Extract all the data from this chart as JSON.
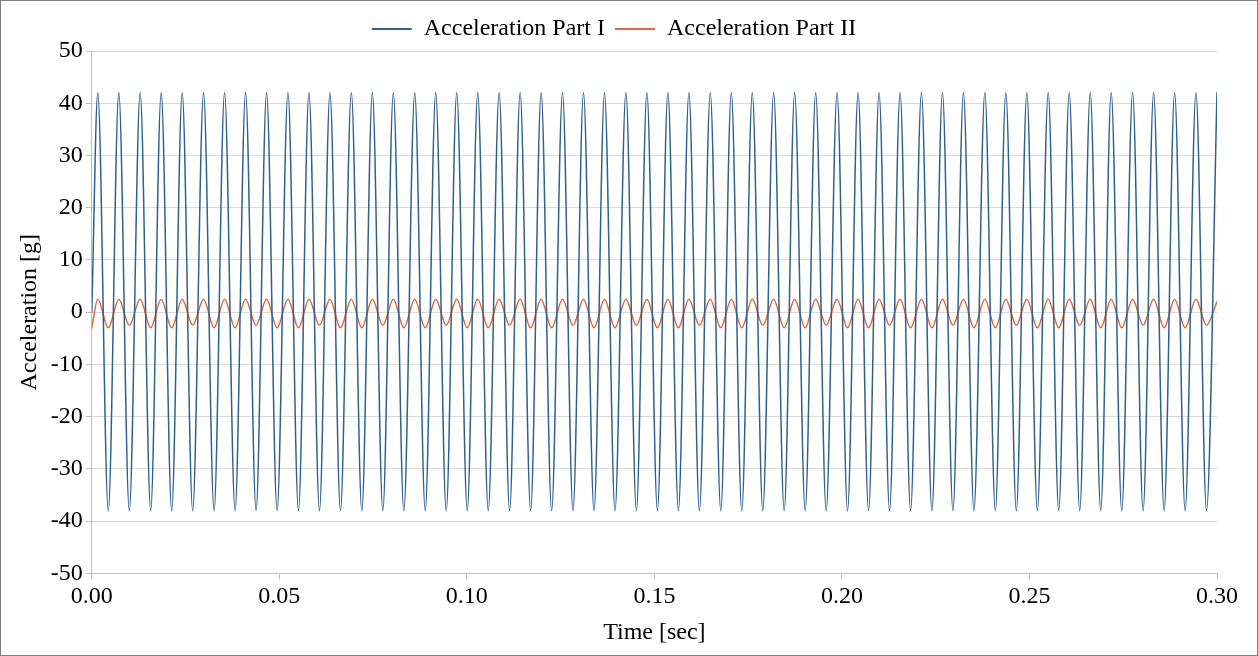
{
  "chart_data": {
    "type": "line",
    "xlabel": "Time [sec]",
    "ylabel": "Acceleration [g]",
    "legend": "top",
    "grid": "y",
    "marker": "none",
    "line_style": "solid",
    "xlim": [
      0,
      0.3
    ],
    "ylim": [
      -50,
      50
    ],
    "xticks": [
      {
        "value": 0,
        "label": "0.00"
      },
      {
        "value": 0.05,
        "label": "0.05"
      },
      {
        "value": 0.1,
        "label": "0.10"
      },
      {
        "value": 0.15,
        "label": "0.15"
      },
      {
        "value": 0.2,
        "label": "0.20"
      },
      {
        "value": 0.25,
        "label": "0.25"
      },
      {
        "value": 0.3,
        "label": "0.30"
      }
    ],
    "yticks": [
      -50,
      -40,
      -30,
      -20,
      -10,
      0,
      10,
      20,
      30,
      40,
      50
    ],
    "x": [
      0,
      0.0016,
      0.0044,
      0.0072,
      0.01,
      0.0129,
      0.0157,
      0.0185,
      0.0213,
      0.0241,
      0.0269,
      0.0298,
      0.0326,
      0.0354,
      0.0382,
      0.041,
      0.0438,
      0.0466,
      0.0494,
      0.0523,
      0.0551,
      0.0579,
      0.0607,
      0.0635,
      0.0663,
      0.0692,
      0.072,
      0.0748,
      0.0776,
      0.0804,
      0.0832,
      0.0861,
      0.0889,
      0.0917,
      0.0945,
      0.0973,
      0.1001,
      0.1029,
      0.1057,
      0.1086,
      0.1114,
      0.1142,
      0.117,
      0.1198,
      0.1226,
      0.1255,
      0.1283,
      0.1311,
      0.1339,
      0.1367,
      0.1395,
      0.1424,
      0.1452,
      0.148,
      0.1508,
      0.1536,
      0.1564,
      0.1592,
      0.162,
      0.1649,
      0.1677,
      0.1705,
      0.1733,
      0.1761,
      0.1789,
      0.1818,
      0.1846,
      0.1874,
      0.1902,
      0.193,
      0.1958,
      0.1987,
      0.2015,
      0.2043,
      0.2071,
      0.2099,
      0.2127,
      0.2155,
      0.2183,
      0.2212,
      0.224,
      0.2268,
      0.2296,
      0.2324,
      0.2352,
      0.2381,
      0.2409,
      0.2437,
      0.2465,
      0.2493,
      0.2521,
      0.255,
      0.2578,
      0.2606,
      0.2634,
      0.2662,
      0.269,
      0.2718,
      0.2746,
      0.2775,
      0.2803,
      0.2831,
      0.2859,
      0.2887,
      0.2915,
      0.2944,
      0.2972,
      0.3
    ],
    "series": [
      {
        "name": "Acceleration Part I",
        "color": "#2e6190",
        "values": [
          0,
          42,
          -38,
          42,
          -38,
          42,
          -38,
          42,
          -38,
          42,
          -38,
          42,
          -38,
          42,
          -38,
          42,
          -38,
          42,
          -38,
          42,
          -38,
          42,
          -38,
          42,
          -38,
          42,
          -38,
          42,
          -38,
          42,
          -38,
          42,
          -38,
          42,
          -38,
          42,
          -38,
          42,
          -38,
          42,
          -38,
          42,
          -38,
          42,
          -38,
          42,
          -38,
          42,
          -38,
          42,
          -38,
          42,
          -38,
          42,
          -38,
          42,
          -38,
          42,
          -38,
          42,
          -38,
          42,
          -38,
          42,
          -38,
          42,
          -38,
          42,
          -38,
          42,
          -38,
          42,
          -38,
          42,
          -38,
          42,
          -38,
          42,
          -38,
          42,
          -38,
          42,
          -38,
          42,
          -38,
          42,
          -38,
          42,
          -38,
          42,
          -38,
          42,
          -38,
          42,
          -38,
          42,
          -38,
          42,
          -38,
          42,
          -38,
          42,
          -38,
          42,
          -38,
          42,
          -38,
          42
        ]
      },
      {
        "name": "Acceleration Part II",
        "color": "#e0683e",
        "values": [
          -3,
          2.5,
          -3,
          2.5,
          -2.5,
          2.5,
          -3,
          2.5,
          -3,
          2.5,
          -2.5,
          2.5,
          -3,
          2.5,
          -3,
          2.5,
          -2.5,
          2.5,
          -3,
          2.5,
          -3,
          2.5,
          -2.5,
          2.5,
          -3,
          2.5,
          -3,
          2.5,
          -2.5,
          2.5,
          -3,
          2.5,
          -3,
          2.5,
          -2.5,
          2.5,
          -3,
          2.5,
          -3,
          2.5,
          -2.5,
          2.5,
          -3,
          2.5,
          -3,
          2.5,
          -2.5,
          2.5,
          -3,
          2.5,
          -3,
          2.5,
          -2.5,
          2.5,
          -3,
          2.5,
          -3,
          2.5,
          -2.5,
          2.5,
          -3,
          2.5,
          -3,
          2.5,
          -2.5,
          2.5,
          -3,
          2.5,
          -3,
          2.5,
          -2.5,
          2.5,
          -3,
          2.5,
          -3,
          2.5,
          -2.5,
          2.5,
          -3,
          2.5,
          -3,
          2.5,
          -2.5,
          2.5,
          -3,
          2.5,
          -3,
          2.5,
          -2.5,
          2.5,
          -3,
          2.5,
          -3,
          2.5,
          -2.5,
          2.5,
          -3,
          2.5,
          -3,
          2.5,
          -2.5,
          2.5,
          -3,
          2.5,
          -3,
          2.5,
          -2.5,
          2
        ]
      }
    ]
  }
}
